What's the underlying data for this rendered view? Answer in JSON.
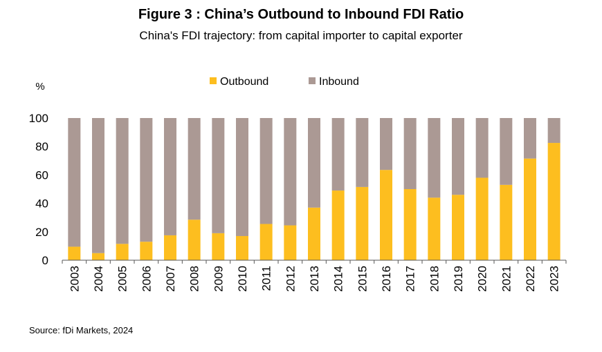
{
  "title": "Figure 3 : China’s Outbound to Inbound FDI Ratio",
  "subtitle": "China's FDI trajectory: from capital importer to capital exporter",
  "source": "Source: fDi Markets, 2024",
  "colors": {
    "outbound": "#FDBE1F",
    "inbound": "#AB9994",
    "axis": "#555555"
  },
  "chart_data": {
    "type": "bar",
    "stacked": true,
    "ylabel": "%",
    "ylim": [
      0,
      100
    ],
    "yticks": [
      0,
      20,
      40,
      60,
      80,
      100
    ],
    "legend_position": "top",
    "grid": false,
    "categories": [
      "2003",
      "2004",
      "2005",
      "2006",
      "2007",
      "2008",
      "2009",
      "2010",
      "2011",
      "2012",
      "2013",
      "2014",
      "2015",
      "2016",
      "2017",
      "2018",
      "2019",
      "2020",
      "2021",
      "2022",
      "2023"
    ],
    "series": [
      {
        "name": "Outbound",
        "values": [
          9.5,
          5,
          11.5,
          13,
          17.5,
          28.5,
          19,
          17,
          25.5,
          24.5,
          37,
          49,
          51.5,
          63.5,
          50,
          44,
          46,
          58,
          53,
          71.5,
          82.5
        ]
      },
      {
        "name": "Inbound",
        "values": [
          90.5,
          95,
          88.5,
          87,
          82.5,
          71.5,
          81,
          83,
          74.5,
          75.5,
          63,
          51,
          48.5,
          36.5,
          50,
          56,
          54,
          42,
          47,
          28.5,
          17.5
        ]
      }
    ]
  }
}
